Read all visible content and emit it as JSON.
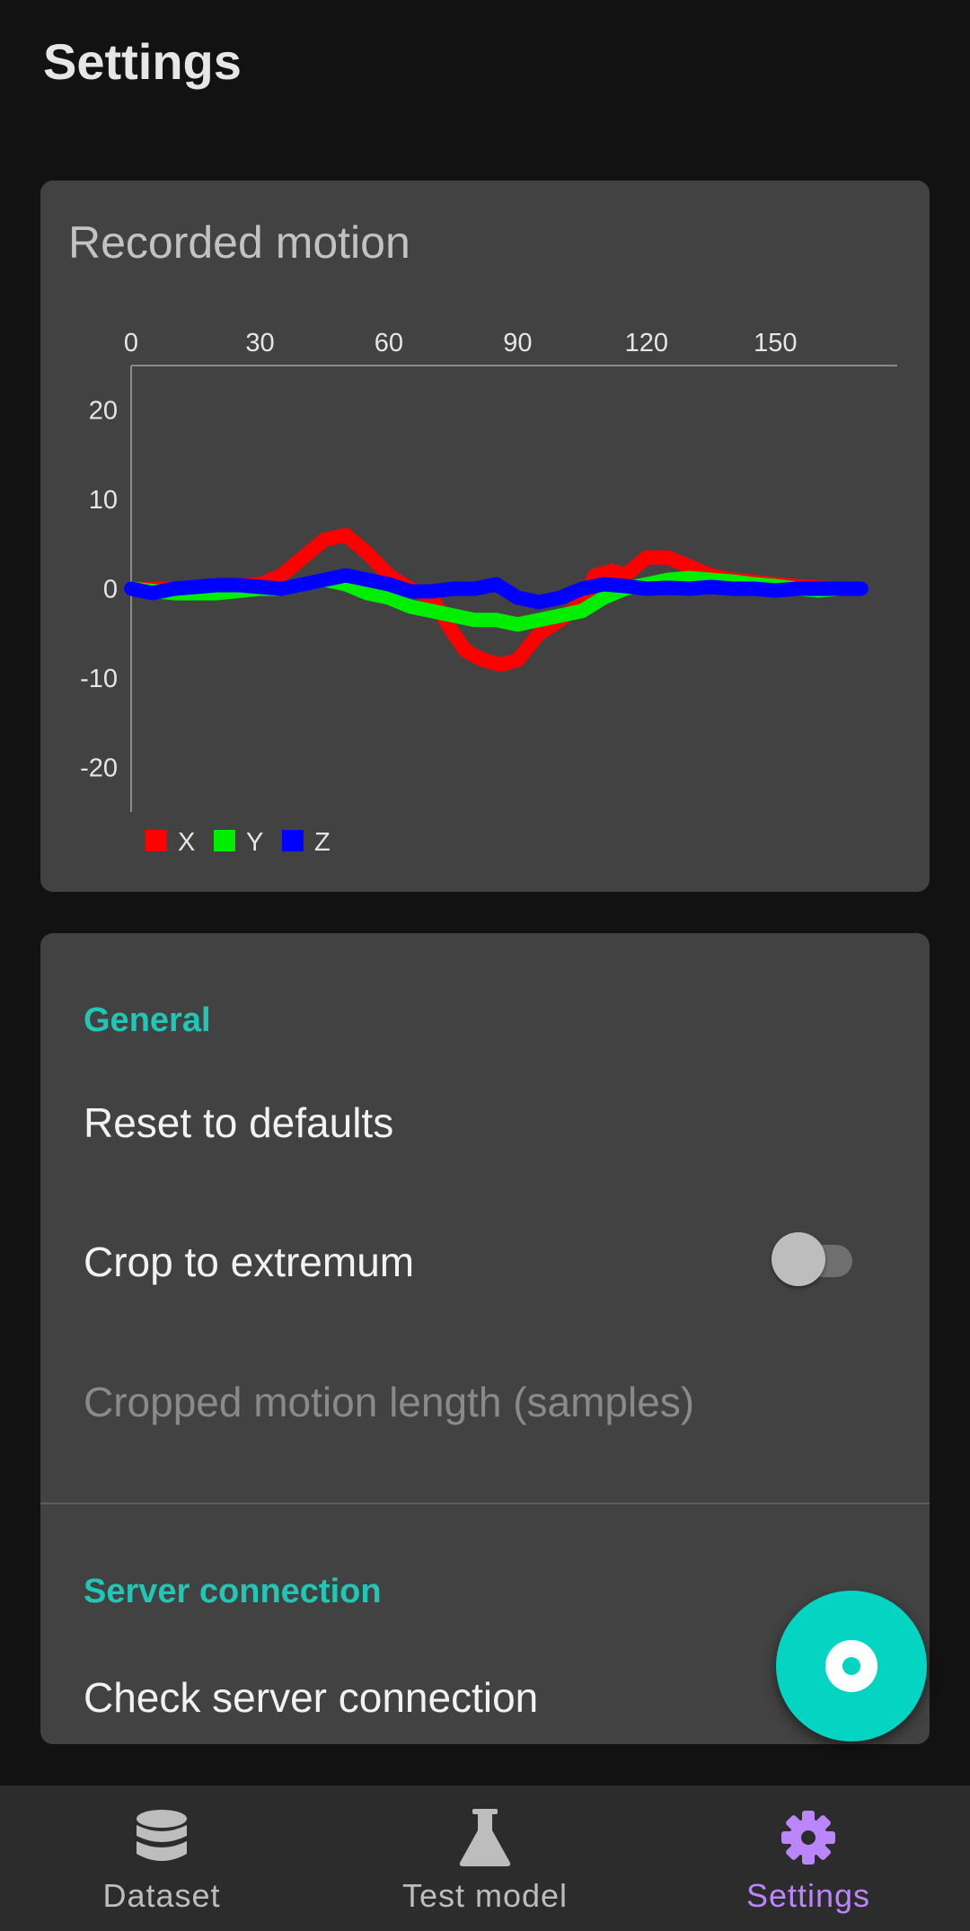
{
  "header": {
    "title": "Settings"
  },
  "chart_card": {
    "title": "Recorded motion"
  },
  "chart_data": {
    "type": "line",
    "title": "Recorded motion",
    "xlabel": "",
    "ylabel": "",
    "xlim": [
      0,
      170
    ],
    "ylim": [
      -25,
      25
    ],
    "x_ticks": [
      0,
      30,
      60,
      90,
      120,
      150
    ],
    "y_ticks": [
      20,
      10,
      0,
      -10,
      -20
    ],
    "grid": false,
    "legend_position": "bottom-left",
    "series": [
      {
        "name": "X",
        "color": "#ff0000",
        "x": [
          0,
          10,
          20,
          30,
          35,
          40,
          45,
          50,
          55,
          60,
          65,
          70,
          75,
          78,
          82,
          86,
          90,
          95,
          100,
          105,
          108,
          112,
          115,
          120,
          125,
          130,
          135,
          140,
          145,
          150,
          155,
          160,
          165,
          170
        ],
        "y": [
          0,
          0,
          0.3,
          0.5,
          1.5,
          3.5,
          5.5,
          6,
          4,
          1.5,
          0,
          -1,
          -5,
          -7,
          -8,
          -8.5,
          -8,
          -5,
          -3.5,
          -1.5,
          1.5,
          2,
          1.5,
          3.5,
          3.5,
          2.5,
          1.5,
          1,
          0.8,
          0.5,
          0.3,
          0.1,
          0,
          0
        ]
      },
      {
        "name": "Y",
        "color": "#00ee00",
        "x": [
          0,
          10,
          20,
          30,
          35,
          40,
          45,
          50,
          55,
          60,
          65,
          70,
          75,
          80,
          85,
          90,
          95,
          100,
          105,
          110,
          115,
          120,
          125,
          130,
          135,
          140,
          145,
          150,
          155,
          160,
          165,
          170
        ],
        "y": [
          0,
          -0.5,
          -0.5,
          0,
          0,
          0.5,
          1,
          0.5,
          -0.5,
          -1,
          -2,
          -2.5,
          -3,
          -3.5,
          -3.5,
          -4,
          -3.5,
          -3,
          -2.5,
          -1,
          0,
          0.5,
          1,
          1.2,
          1,
          0.8,
          0.5,
          0.3,
          0,
          -0.2,
          0,
          0
        ]
      },
      {
        "name": "Z",
        "color": "#0000ff",
        "x": [
          0,
          5,
          10,
          15,
          20,
          25,
          30,
          35,
          40,
          45,
          50,
          55,
          60,
          65,
          70,
          75,
          80,
          85,
          90,
          95,
          100,
          105,
          110,
          115,
          120,
          125,
          130,
          135,
          140,
          145,
          150,
          155,
          160,
          165,
          170
        ],
        "y": [
          0,
          -0.5,
          0,
          0.2,
          0.4,
          0.4,
          0.2,
          0,
          0.5,
          1,
          1.5,
          1,
          0.5,
          -0.3,
          -0.3,
          0,
          0,
          0.5,
          -1,
          -1.5,
          -1,
          0,
          0.5,
          0.3,
          0,
          0.1,
          0,
          0.2,
          0,
          0,
          -0.2,
          0,
          0,
          0,
          0
        ]
      }
    ]
  },
  "settings": {
    "general_header": "General",
    "reset_label": "Reset to defaults",
    "crop_label": "Crop to extremum",
    "crop_enabled": false,
    "cropped_length_label": "Cropped motion length (samples)",
    "server_header": "Server connection",
    "check_server_label": "Check server connection"
  },
  "fab": {
    "icon": "record-icon",
    "color": "#03d5c2"
  },
  "bottom_nav": {
    "items": [
      {
        "label": "Dataset",
        "icon": "database-icon",
        "active": false
      },
      {
        "label": "Test model",
        "icon": "flask-icon",
        "active": false
      },
      {
        "label": "Settings",
        "icon": "gear-icon",
        "active": true
      }
    ],
    "active_color": "#bb86fc",
    "inactive_color": "#bdbdbd"
  }
}
